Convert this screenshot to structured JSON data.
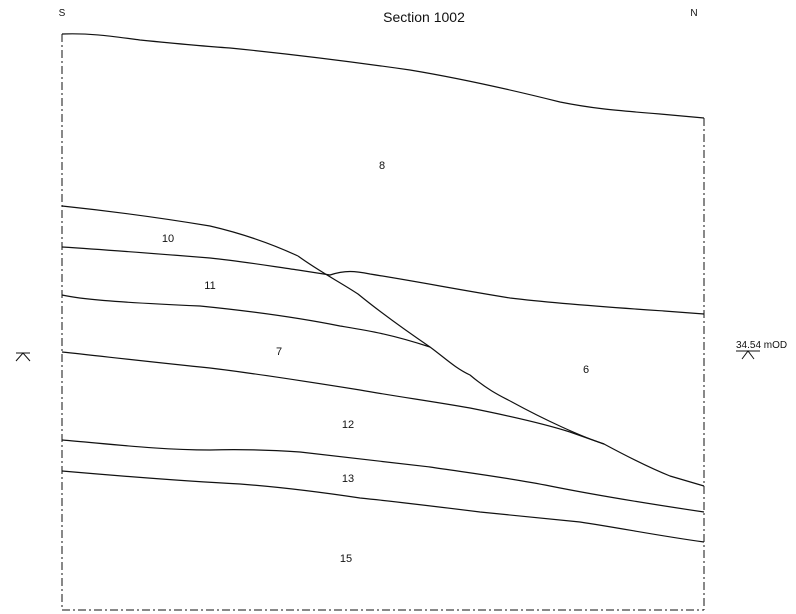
{
  "title": "Section 1002",
  "orientation": {
    "left": "S",
    "right": "N"
  },
  "datum": {
    "label": "34.54 mOD"
  },
  "contexts": [
    {
      "id": "8",
      "label": "8"
    },
    {
      "id": "10",
      "label": "10"
    },
    {
      "id": "11",
      "label": "11"
    },
    {
      "id": "7",
      "label": "7"
    },
    {
      "id": "6",
      "label": "6"
    },
    {
      "id": "12",
      "label": "12"
    },
    {
      "id": "13",
      "label": "13"
    },
    {
      "id": "15",
      "label": "15"
    }
  ]
}
